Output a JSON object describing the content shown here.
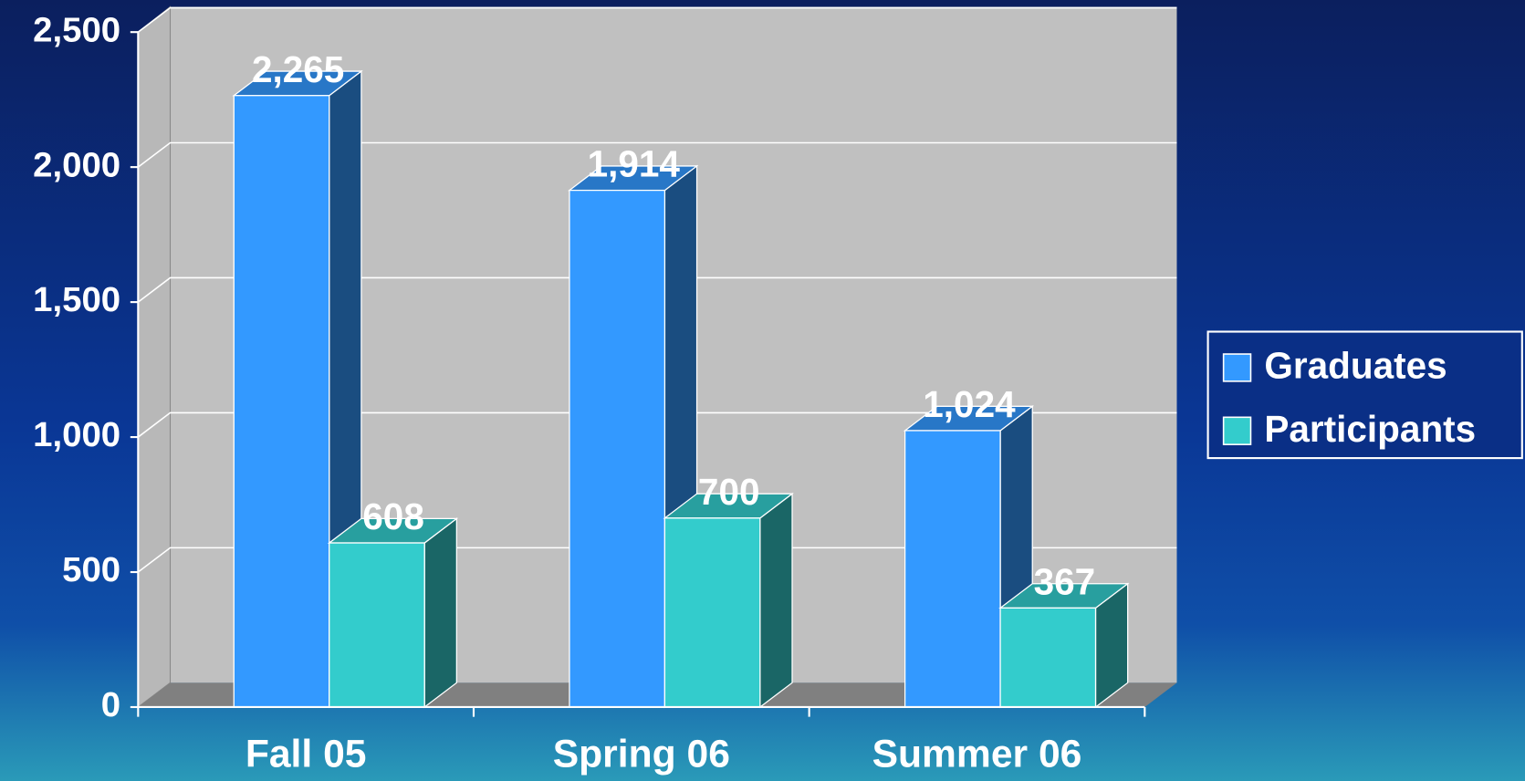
{
  "chart_data": {
    "type": "bar3d",
    "categories": [
      "Fall 05",
      "Spring 06",
      "Summer 06"
    ],
    "series": [
      {
        "name": "Graduates",
        "color": "#3399ff",
        "values": [
          2265,
          1914,
          1024
        ],
        "value_labels": [
          "2,265",
          "1,914",
          "1,024"
        ]
      },
      {
        "name": "Participants",
        "color": "#33cccc",
        "values": [
          608,
          700,
          367
        ],
        "value_labels": [
          "608",
          "700",
          "367"
        ]
      }
    ],
    "ylim": [
      0,
      2500
    ],
    "yticks": [
      0,
      500,
      {
        "value": 1000,
        "label": "1,000"
      },
      {
        "value": 1500,
        "label": "1,500"
      },
      {
        "value": 2000,
        "label": "2,000"
      },
      {
        "value": 2500,
        "label": "2,500"
      }
    ],
    "grid": true,
    "legend": "right"
  }
}
